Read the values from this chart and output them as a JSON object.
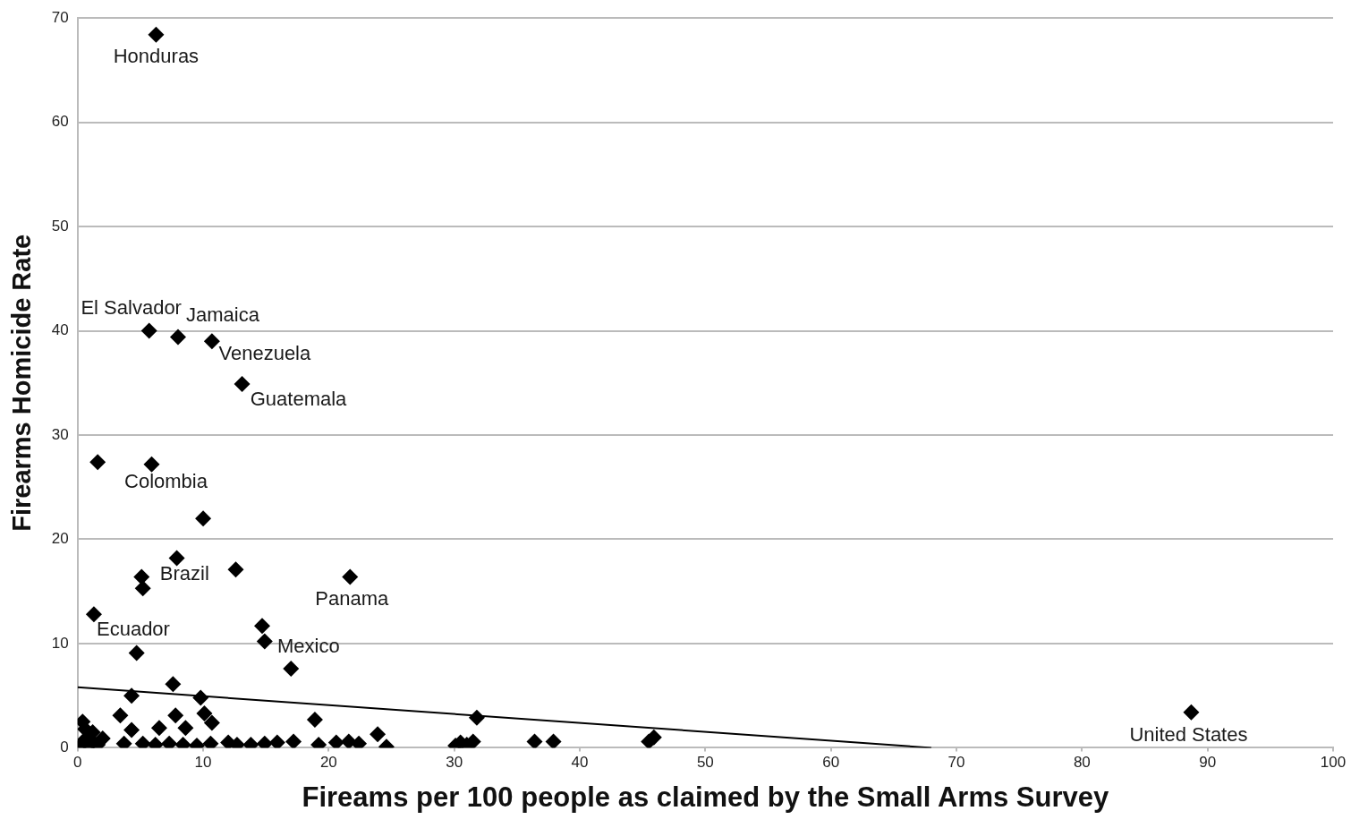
{
  "chart_data": {
    "type": "scatter",
    "xlabel": "Fireams per 100 people as claimed by the Small Arms Survey",
    "ylabel": "Firearms Homicide Rate",
    "xlim": [
      0,
      100
    ],
    "xticks": [
      0,
      10,
      20,
      30,
      40,
      50,
      60,
      70,
      80,
      90,
      100
    ],
    "ylim": [
      0,
      70
    ],
    "yticks": [
      0,
      10,
      20,
      30,
      40,
      50,
      60,
      70
    ],
    "grid": "y",
    "legend": false,
    "series": [
      {
        "color": "#000000",
        "marker": "diamond",
        "x": [
          6.25,
          5.7,
          8.0,
          10.7,
          13.1,
          1.6,
          5.9,
          10.0,
          7.9,
          12.6,
          5.1,
          5.2,
          21.7,
          1.3,
          14.7,
          14.9,
          4.7,
          17.0,
          4.3,
          7.6,
          9.8,
          3.4,
          7.8,
          10.1,
          10.7,
          18.9,
          31.8,
          88.7,
          0.4,
          8.6,
          4.3,
          6.5,
          0.6,
          1.2,
          0.3,
          0.6,
          0.9,
          1.2,
          1.6,
          2.0,
          3.7,
          5.2,
          6.2,
          7.3,
          8.4,
          9.5,
          10.6,
          12.0,
          12.7,
          13.8,
          14.9,
          15.9,
          17.2,
          19.2,
          20.6,
          21.6,
          22.4,
          23.9,
          24.6,
          30.1,
          30.5,
          31.0,
          31.5,
          36.4,
          37.9,
          45.5,
          45.9
        ],
        "values": [
          68.4,
          40.0,
          39.4,
          39.0,
          34.9,
          27.4,
          27.2,
          22.0,
          18.2,
          17.1,
          16.4,
          15.3,
          16.4,
          12.8,
          11.7,
          10.2,
          9.1,
          7.6,
          5.0,
          6.1,
          4.8,
          3.1,
          3.1,
          3.3,
          2.4,
          2.7,
          2.9,
          3.4,
          2.5,
          1.9,
          1.7,
          1.9,
          1.8,
          1.5,
          0.3,
          0.8,
          0.2,
          0.6,
          0.3,
          0.9,
          0.4,
          0.4,
          0.3,
          0.4,
          0.3,
          0.2,
          0.4,
          0.5,
          0.3,
          0.3,
          0.4,
          0.5,
          0.6,
          0.3,
          0.5,
          0.6,
          0.4,
          1.3,
          0.1,
          0.2,
          0.5,
          0.3,
          0.6,
          0.6,
          0.6,
          0.6,
          1.0
        ]
      },
      {
        "type": "line",
        "color": "#000000",
        "marker": "none",
        "x": [
          0,
          68
        ],
        "values": [
          5.8,
          0
        ]
      }
    ],
    "annotations": [
      {
        "text": "Honduras",
        "x": 6.25,
        "y": 68.4
      },
      {
        "text": "El Salvador",
        "x": 5.7,
        "y": 40.0
      },
      {
        "text": "Jamaica",
        "x": 8.0,
        "y": 39.4
      },
      {
        "text": "Venezuela",
        "x": 10.7,
        "y": 39.0
      },
      {
        "text": "Guatemala",
        "x": 13.1,
        "y": 34.9
      },
      {
        "text": "Colombia",
        "x": 5.9,
        "y": 27.2
      },
      {
        "text": "Brazil",
        "x": 5.1,
        "y": 16.4
      },
      {
        "text": "Panama",
        "x": 21.7,
        "y": 16.4
      },
      {
        "text": "Ecuador",
        "x": 1.3,
        "y": 12.8
      },
      {
        "text": "Mexico",
        "x": 14.9,
        "y": 10.2
      },
      {
        "text": "United States",
        "x": 88.7,
        "y": 3.4
      }
    ]
  }
}
